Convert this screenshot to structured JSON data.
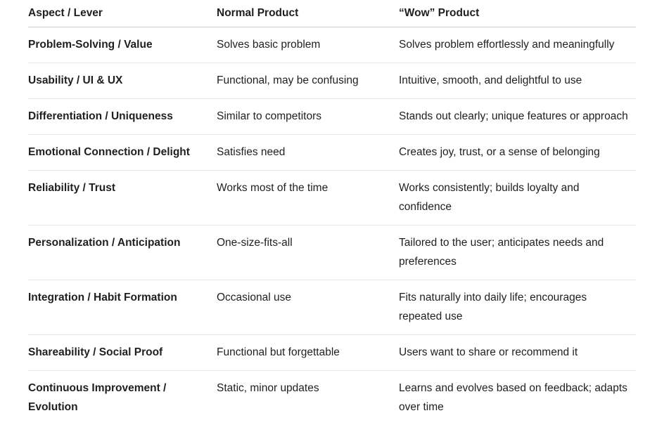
{
  "table": {
    "headers": [
      "Aspect / Lever",
      "Normal Product",
      "“Wow” Product"
    ],
    "rows": [
      [
        "Problem-Solving / Value",
        "Solves basic problem",
        "Solves problem effortlessly and meaningfully"
      ],
      [
        "Usability / UI & UX",
        "Functional, may be confusing",
        "Intuitive, smooth, and delightful to use"
      ],
      [
        "Differentiation / Uniqueness",
        "Similar to competitors",
        "Stands out clearly; unique features or approach"
      ],
      [
        "Emotional Connection / Delight",
        "Satisfies need",
        "Creates joy, trust, or a sense of belonging"
      ],
      [
        "Reliability / Trust",
        "Works most of the time",
        "Works consistently; builds loyalty and confidence"
      ],
      [
        "Personalization / Anticipation",
        "One-size-fits-all",
        "Tailored to the user; anticipates needs and preferences"
      ],
      [
        "Integration / Habit Formation",
        "Occasional use",
        "Fits naturally into daily life; encourages repeated use"
      ],
      [
        "Shareability / Social Proof",
        "Functional but forgettable",
        "Users want to share or recommend it"
      ],
      [
        "Continuous Improvement / Evolution",
        "Static, minor updates",
        "Learns and evolves based on feedback; adapts over time"
      ]
    ]
  }
}
